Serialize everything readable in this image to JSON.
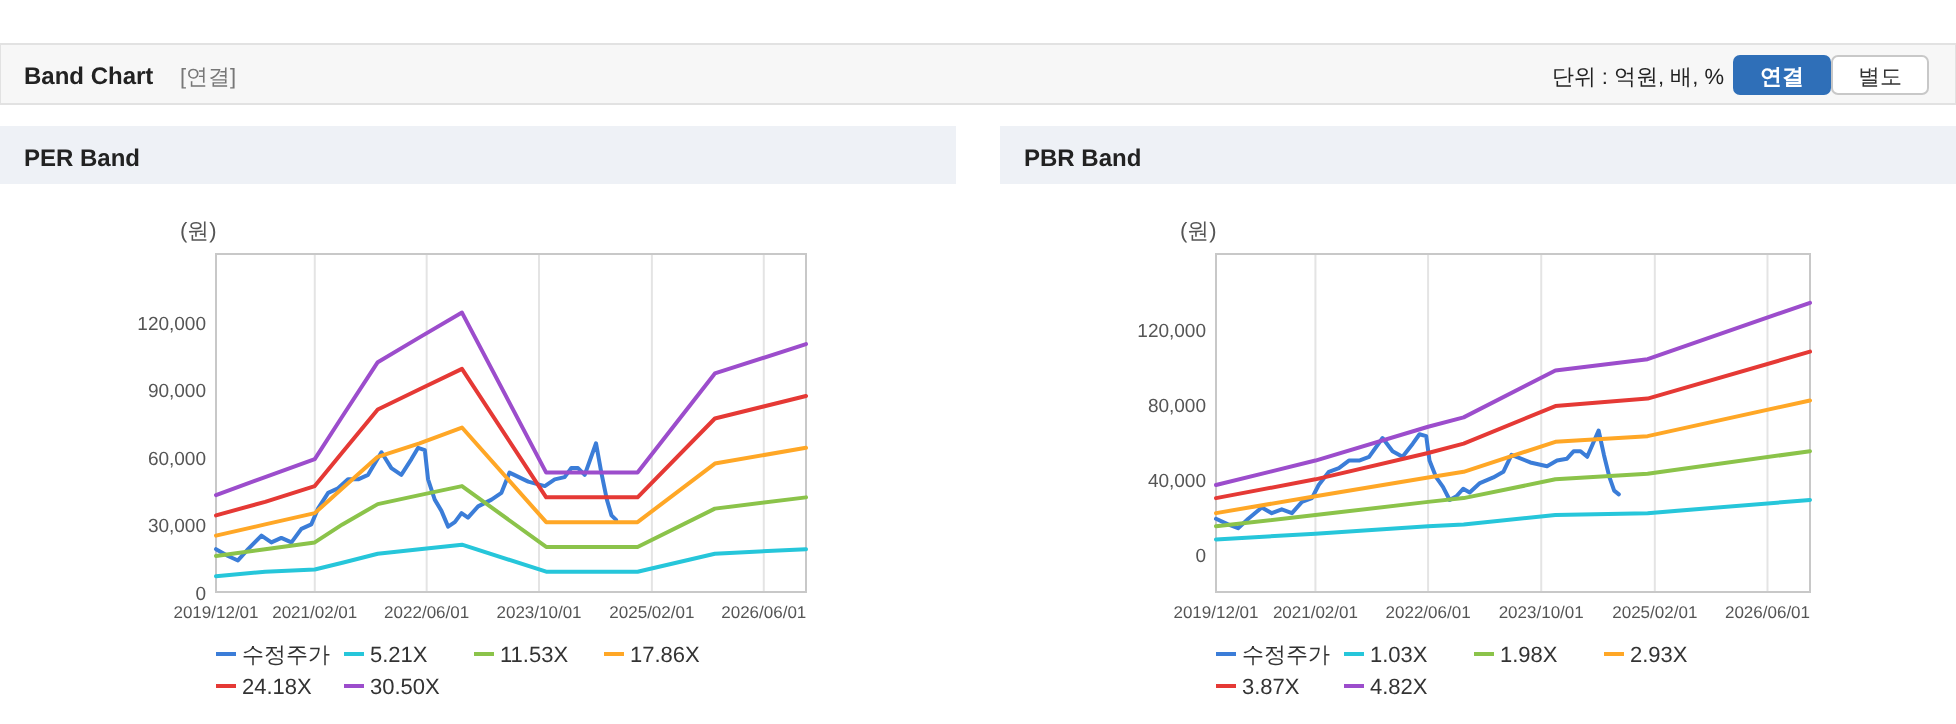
{
  "chart_data": [
    {
      "type": "line",
      "title": "PER Band",
      "ylabel": "(원)",
      "annotations": [
        "Band Chart",
        "[연결]",
        "단위 : 억원, 배, %",
        "연결",
        "별도"
      ],
      "x": [
        "2019-12-01",
        "2020-07-01",
        "2021-02-01",
        "2021-06-01",
        "2021-11-01",
        "2022-05-01",
        "2022-11-01",
        "2023-11-01",
        "2024-12-01",
        "2025-11-01",
        "2026-12-01"
      ],
      "xlim": [
        "2019-12-01",
        "2026-12-01"
      ],
      "xticks": [
        {
          "value": "2019-12-01",
          "label": "2019/12/01"
        },
        {
          "value": "2021-02-01",
          "label": "2021/02/01"
        },
        {
          "value": "2022-06-01",
          "label": "2022/06/01"
        },
        {
          "value": "2023-10-01",
          "label": "2023/10/01"
        },
        {
          "value": "2025-02-01",
          "label": "2025/02/01"
        },
        {
          "value": "2026-06-01",
          "label": "2026/06/01"
        }
      ],
      "ylim": [
        0,
        150000
      ],
      "yticks": [
        {
          "value": 0,
          "label": "0"
        },
        {
          "value": 30000,
          "label": "30,000"
        },
        {
          "value": 60000,
          "label": "60,000"
        },
        {
          "value": 90000,
          "label": "90,000"
        },
        {
          "value": 120000,
          "label": "120,000"
        }
      ],
      "grid": "x",
      "legend": "bottom",
      "marker": "none",
      "line_style": "solid",
      "series": [
        {
          "name": "수정주가",
          "color": "#3b7dd8",
          "x": [
            "2019-12-01",
            "2020-01-22",
            "2020-03-05",
            "2020-04-18",
            "2020-06-15",
            "2020-07-28",
            "2020-09-09",
            "2020-10-23",
            "2020-12-05",
            "2021-01-17",
            "2021-02-15",
            "2021-03-31",
            "2021-05-13",
            "2021-06-25",
            "2021-08-08",
            "2021-09-20",
            "2021-11-17",
            "2021-12-30",
            "2022-02-11",
            "2022-03-27",
            "2022-04-25",
            "2022-05-24",
            "2022-06-07",
            "2022-07-06",
            "2022-08-04",
            "2022-09-02",
            "2022-10-01",
            "2022-10-30",
            "2022-11-27",
            "2023-01-10",
            "2023-03-09",
            "2023-04-21",
            "2023-05-26",
            "2023-08-15",
            "2023-10-26",
            "2023-12-08",
            "2024-01-20",
            "2024-02-18",
            "2024-03-18",
            "2024-04-16",
            "2024-06-04",
            "2024-06-27",
            "2024-07-21",
            "2024-08-10",
            "2024-08-30"
          ],
          "values": [
            19000,
            16000,
            14000,
            19000,
            25000,
            22000,
            24000,
            22000,
            28000,
            30000,
            37000,
            44000,
            46000,
            50000,
            50000,
            52000,
            62000,
            55000,
            52000,
            59000,
            64000,
            63000,
            50000,
            41000,
            36000,
            29000,
            31000,
            35000,
            33000,
            38000,
            41000,
            44000,
            53000,
            49000,
            47000,
            50000,
            51000,
            55000,
            55000,
            52000,
            66000,
            53000,
            41000,
            34000,
            32000
          ]
        },
        {
          "name": "5.21X",
          "color": "#26c6da",
          "values": [
            7000,
            9000,
            10000,
            13000,
            17000,
            19000,
            21000,
            9000,
            9000,
            17000,
            19000
          ]
        },
        {
          "name": "11.53X",
          "color": "#8bc34a",
          "values": [
            16000,
            19000,
            22000,
            30000,
            39000,
            43000,
            47000,
            20000,
            20000,
            37000,
            42000
          ]
        },
        {
          "name": "17.86X",
          "color": "#ffa726",
          "values": [
            25000,
            30000,
            35000,
            46000,
            60000,
            66000,
            73000,
            31000,
            31000,
            57000,
            64000
          ]
        },
        {
          "name": "24.18X",
          "color": "#e53935",
          "values": [
            34000,
            40000,
            47000,
            62000,
            81000,
            90000,
            99000,
            42000,
            42000,
            77000,
            87000
          ]
        },
        {
          "name": "30.50X",
          "color": "#9c4dcc",
          "values": [
            43000,
            51000,
            59000,
            78000,
            102000,
            113000,
            124000,
            53000,
            53000,
            97000,
            110000
          ]
        }
      ]
    },
    {
      "type": "line",
      "title": "PBR Band",
      "ylabel": "(원)",
      "x": [
        "2019-12-01",
        "2021-02-01",
        "2022-06-01",
        "2022-11-01",
        "2023-12-01",
        "2025-01-01",
        "2026-12-01"
      ],
      "xlim": [
        "2019-12-01",
        "2026-12-01"
      ],
      "xticks": [
        {
          "value": "2019-12-01",
          "label": "2019/12/01"
        },
        {
          "value": "2021-02-01",
          "label": "2021/02/01"
        },
        {
          "value": "2022-06-01",
          "label": "2022/06/01"
        },
        {
          "value": "2023-10-01",
          "label": "2023/10/01"
        },
        {
          "value": "2025-02-01",
          "label": "2025/02/01"
        },
        {
          "value": "2026-06-01",
          "label": "2026/06/01"
        }
      ],
      "ylim": [
        -20000,
        160000
      ],
      "yticks": [
        {
          "value": 0,
          "label": "0"
        },
        {
          "value": 40000,
          "label": "40,000"
        },
        {
          "value": 80000,
          "label": "80,000"
        },
        {
          "value": 120000,
          "label": "120,000"
        }
      ],
      "grid": "x",
      "legend": "bottom",
      "marker": "none",
      "line_style": "solid",
      "series": [
        {
          "name": "수정주가",
          "color": "#3b7dd8",
          "x": [
            "2019-12-01",
            "2020-01-22",
            "2020-03-05",
            "2020-04-18",
            "2020-06-15",
            "2020-07-28",
            "2020-09-09",
            "2020-10-23",
            "2020-12-05",
            "2021-01-17",
            "2021-02-15",
            "2021-03-31",
            "2021-05-13",
            "2021-06-25",
            "2021-08-08",
            "2021-09-20",
            "2021-11-17",
            "2021-12-30",
            "2022-02-11",
            "2022-03-27",
            "2022-04-25",
            "2022-05-24",
            "2022-06-07",
            "2022-07-06",
            "2022-08-04",
            "2022-09-02",
            "2022-10-01",
            "2022-10-30",
            "2022-11-27",
            "2023-01-10",
            "2023-03-09",
            "2023-04-21",
            "2023-05-26",
            "2023-08-15",
            "2023-10-26",
            "2023-12-08",
            "2024-01-20",
            "2024-02-18",
            "2024-03-18",
            "2024-04-16",
            "2024-06-04",
            "2024-06-27",
            "2024-07-21",
            "2024-08-10",
            "2024-08-30"
          ],
          "values": [
            19000,
            16000,
            14000,
            19000,
            25000,
            22000,
            24000,
            22000,
            28000,
            30000,
            37000,
            44000,
            46000,
            50000,
            50000,
            52000,
            62000,
            55000,
            52000,
            59000,
            64000,
            63000,
            50000,
            41000,
            36000,
            29000,
            31000,
            35000,
            33000,
            38000,
            41000,
            44000,
            53000,
            49000,
            47000,
            50000,
            51000,
            55000,
            55000,
            52000,
            66000,
            53000,
            41000,
            34000,
            32000
          ]
        },
        {
          "name": "1.03X",
          "color": "#26c6da",
          "values": [
            8000,
            11000,
            15000,
            16000,
            21000,
            22000,
            29000
          ]
        },
        {
          "name": "1.98X",
          "color": "#8bc34a",
          "values": [
            15000,
            21000,
            28000,
            30000,
            40000,
            43000,
            55000
          ]
        },
        {
          "name": "2.93X",
          "color": "#ffa726",
          "values": [
            22000,
            31000,
            41000,
            44000,
            60000,
            63000,
            82000
          ]
        },
        {
          "name": "3.87X",
          "color": "#e53935",
          "values": [
            30000,
            40000,
            54000,
            59000,
            79000,
            83000,
            108000
          ]
        },
        {
          "name": "4.82X",
          "color": "#9c4dcc",
          "values": [
            37000,
            50000,
            68000,
            73000,
            98000,
            104000,
            134000
          ]
        }
      ]
    }
  ]
}
